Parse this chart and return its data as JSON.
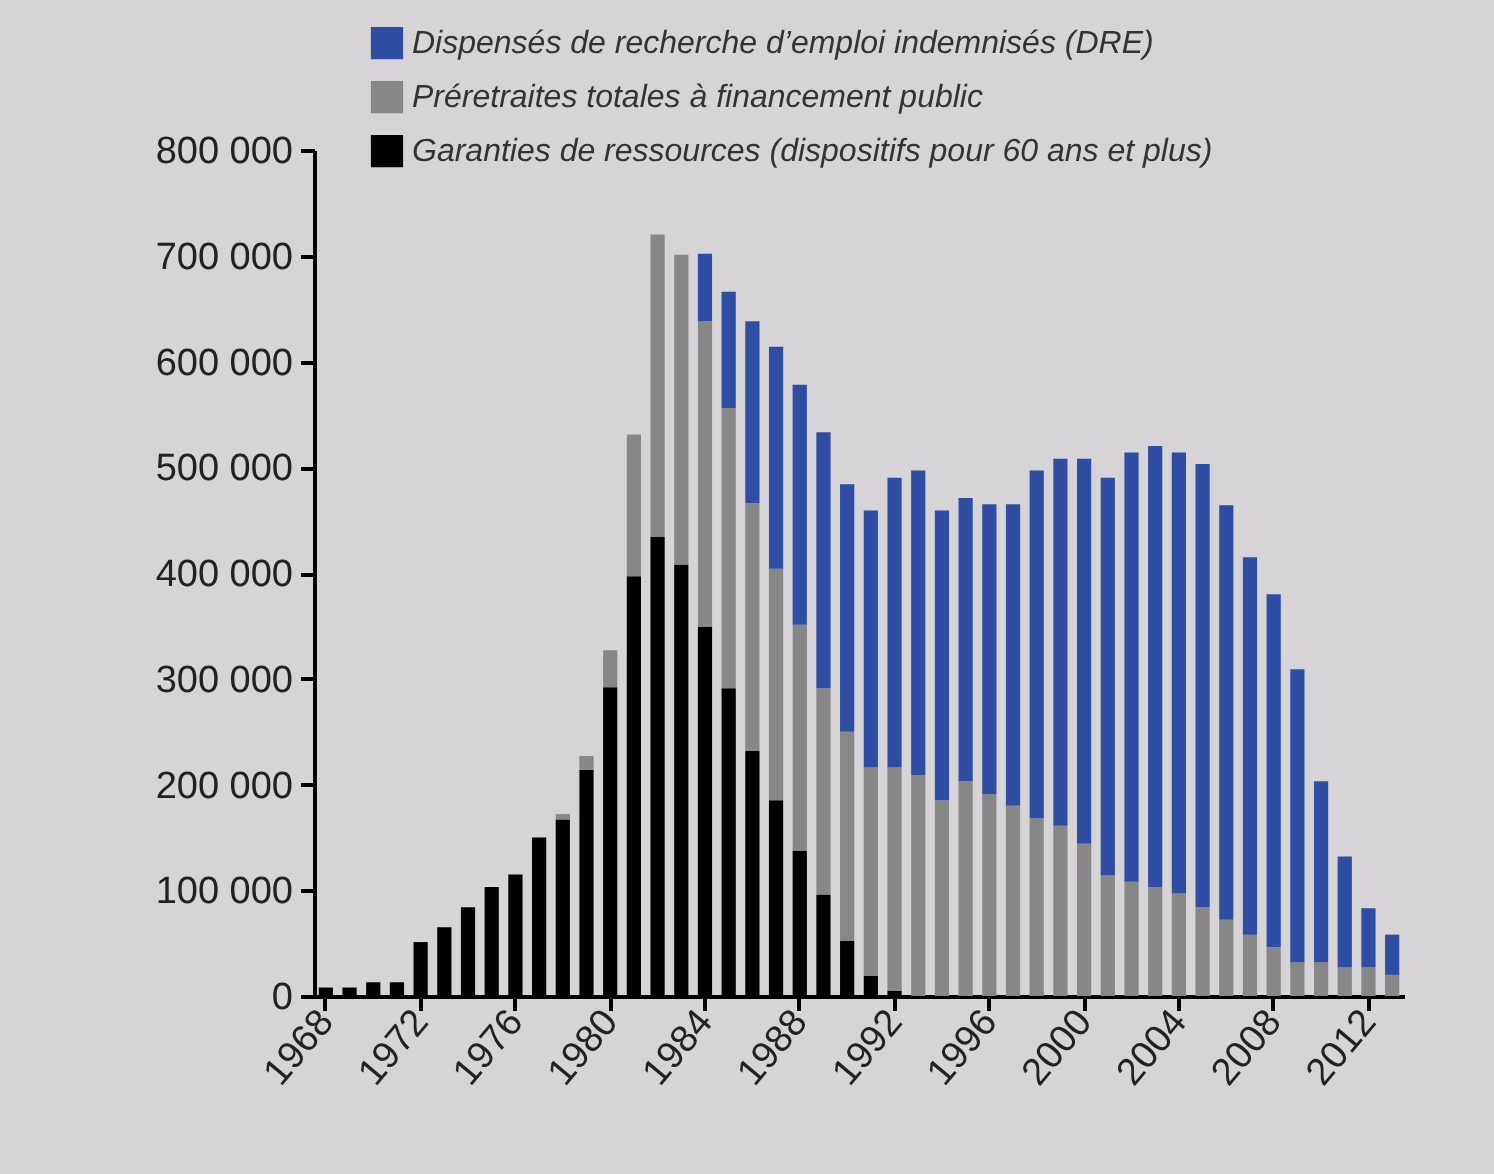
{
  "chart_data": {
    "type": "bar",
    "stacked": true,
    "legend": "top",
    "grid": false,
    "categories": [
      "1968",
      null,
      null,
      null,
      "1972",
      null,
      null,
      null,
      "1976",
      null,
      null,
      null,
      "1980",
      null,
      null,
      null,
      "1984",
      null,
      null,
      null,
      "1988",
      null,
      null,
      null,
      "1992",
      null,
      null,
      null,
      "1996",
      null,
      null,
      null,
      "2000",
      null,
      null,
      null,
      "2004",
      null,
      null,
      null,
      "2008",
      null,
      null,
      null,
      "2012",
      null
    ],
    "ylim": [
      0,
      800000
    ],
    "yticks": [
      {
        "value": 0,
        "label": "0"
      },
      {
        "value": 100000,
        "label": "100 000"
      },
      {
        "value": 200000,
        "label": "200 000"
      },
      {
        "value": 300000,
        "label": "300 000"
      },
      {
        "value": 400000,
        "label": "400 000"
      },
      {
        "value": 500000,
        "label": "500 000"
      },
      {
        "value": 600000,
        "label": "600 000"
      },
      {
        "value": 700000,
        "label": "700 000"
      },
      {
        "value": 800000,
        "label": "800 000"
      }
    ],
    "series": [
      {
        "name": "Garanties de ressources (dispositifs pour 60 ans et plus)",
        "color": "#000000",
        "values": [
          8000,
          8000,
          13000,
          13000,
          51000,
          65000,
          84000,
          103000,
          115000,
          150000,
          167000,
          214000,
          292000,
          397000,
          434000,
          408000,
          349000,
          291000,
          232000,
          185000,
          137000,
          96000,
          52000,
          19000,
          5000,
          null,
          null,
          null,
          null,
          null,
          null,
          null,
          null,
          null,
          null,
          null,
          null,
          null,
          null,
          null,
          null,
          null,
          null,
          null,
          null,
          null
        ]
      },
      {
        "name": "Préretraites totales à financement public",
        "color": "#878787",
        "values": [
          null,
          null,
          null,
          null,
          null,
          null,
          null,
          null,
          null,
          null,
          5000,
          13000,
          35000,
          134000,
          286000,
          293000,
          289000,
          265000,
          234000,
          219000,
          214000,
          195000,
          198000,
          197000,
          211000,
          209000,
          185000,
          203000,
          191000,
          180000,
          168000,
          161000,
          144000,
          114000,
          108000,
          103000,
          97000,
          84000,
          72000,
          58000,
          46000,
          32000,
          32000,
          27000,
          27000,
          20000
        ]
      },
      {
        "name": "Dispensés de recherche d’emploi indemnisés (DRE)",
        "color": "#2f4ea3",
        "values": [
          null,
          null,
          null,
          null,
          null,
          null,
          null,
          null,
          null,
          null,
          null,
          null,
          null,
          null,
          null,
          null,
          64000,
          110000,
          172000,
          210000,
          227000,
          242000,
          234000,
          243000,
          274000,
          288000,
          274000,
          268000,
          274000,
          285000,
          329000,
          347000,
          364000,
          376000,
          406000,
          417000,
          417000,
          419000,
          392000,
          357000,
          334000,
          277000,
          171000,
          105000,
          56000,
          38000
        ]
      }
    ]
  }
}
